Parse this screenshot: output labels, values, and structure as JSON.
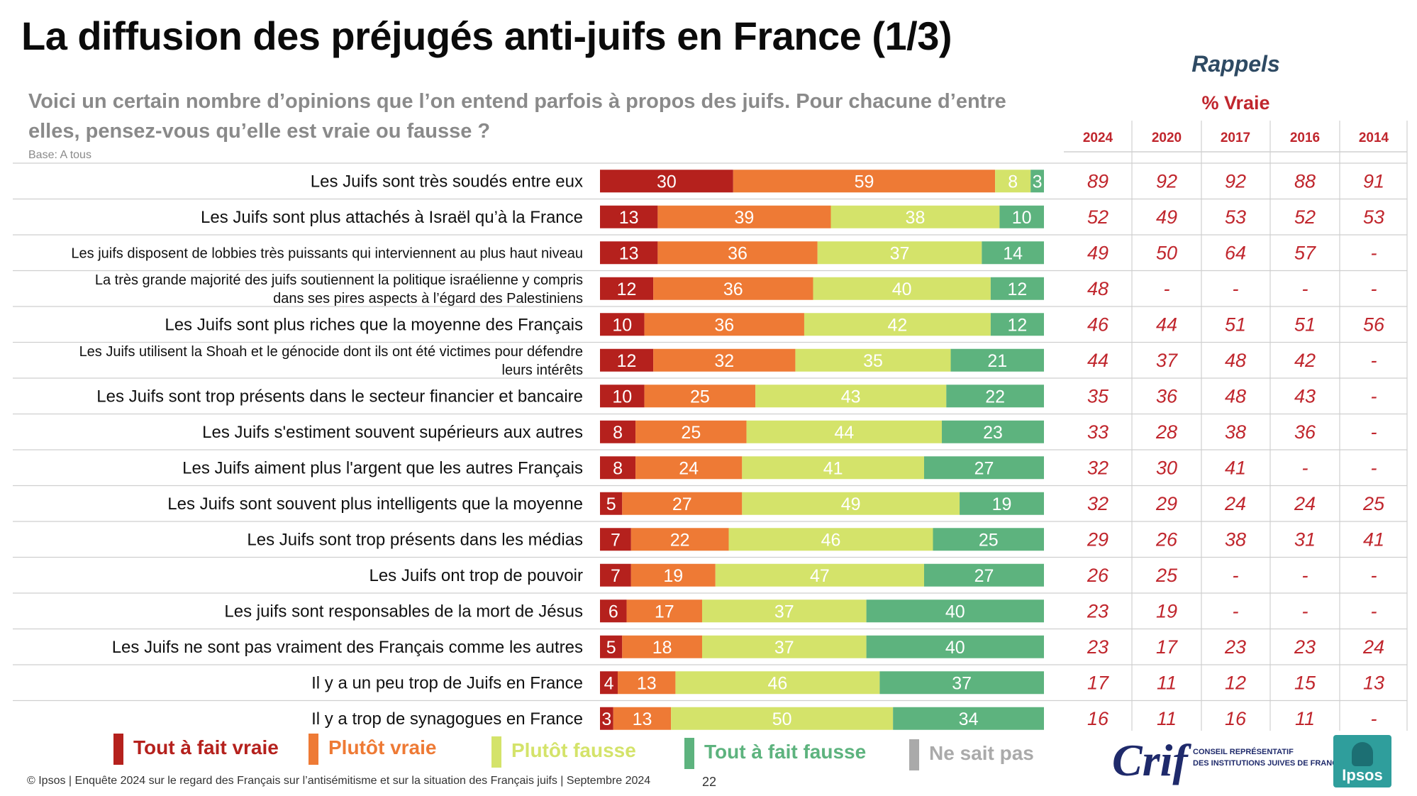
{
  "page": {
    "title": "La diffusion des préjugés anti-juifs en France (1/3)",
    "question": "Voici un certain nombre d’opinions que l’on entend parfois à propos des juifs. Pour chacune d’entre elles, pensez-vous qu’elle est vraie ou fausse ?",
    "base": "Base: A tous",
    "rappels_label": "Rappels",
    "pct_vraie_label": "% Vraie",
    "footer": "© Ipsos | Enquête 2024 sur le regard des Français sur l’antisémitisme et sur la situation des Français juifs | Septembre 2024",
    "page_number": "22"
  },
  "logos": {
    "crif": "Crif",
    "crif_subtitle_line1": "CONSEIL REPRÉSENTATIF",
    "crif_subtitle_line2": "DES INSTITUTIONS JUIVES DE FRANCE",
    "ipsos": "Ipsos"
  },
  "legend": [
    {
      "label": "Tout à fait vraie",
      "color": "#b5211d"
    },
    {
      "label": "Plutôt vraie",
      "color": "#ee7a35"
    },
    {
      "label": "Plutôt fausse",
      "color": "#d4e36a"
    },
    {
      "label": "Tout à fait fausse",
      "color": "#5db37e"
    },
    {
      "label": "Ne sait pas",
      "color": "#aaaaaa"
    }
  ],
  "chart_data": {
    "type": "bar",
    "stacked": true,
    "orientation": "horizontal",
    "scale_max": 100,
    "categories": [
      "Les Juifs sont très soudés entre eux",
      "Les Juifs sont plus attachés à Israël qu’à la France",
      "Les juifs disposent de lobbies très puissants qui interviennent au plus haut niveau",
      "La très grande majorité des juifs soutiennent la politique israélienne y compris dans ses pires aspects à l’égard des Palestiniens",
      "Les Juifs sont plus riches que la moyenne des Français",
      "Les Juifs utilisent la Shoah et le génocide dont ils ont été victimes pour défendre leurs intérêts",
      "Les Juifs sont trop présents dans le secteur financier et bancaire",
      "Les Juifs s'estiment souvent supérieurs aux autres",
      "Les Juifs aiment plus l'argent que les autres Français",
      "Les Juifs sont souvent plus intelligents que la moyenne",
      "Les Juifs sont trop présents dans les médias",
      "Les Juifs ont trop de pouvoir",
      "Les juifs sont responsables de la mort de Jésus",
      "Les Juifs ne sont pas vraiment des Français comme les autres",
      "Il y a un peu trop de Juifs en France",
      "Il y a trop de synagogues en France"
    ],
    "category_lines": [
      [
        "Les Juifs sont très soudés entre eux"
      ],
      [
        "Les Juifs sont plus attachés à Israël qu’à la France"
      ],
      [
        "Les juifs disposent de lobbies très puissants qui interviennent au plus haut niveau"
      ],
      [
        "La très grande majorité des juifs soutiennent la politique israélienne y compris",
        "dans ses pires aspects à l’égard des Palestiniens"
      ],
      [
        "Les Juifs sont plus riches que la moyenne des Français"
      ],
      [
        "Les Juifs utilisent la Shoah et le génocide dont ils ont été victimes pour défendre",
        "leurs intérêts"
      ],
      [
        "Les Juifs sont trop présents dans le secteur financier et bancaire"
      ],
      [
        "Les Juifs s'estiment souvent supérieurs aux autres"
      ],
      [
        "Les Juifs aiment plus l'argent que les autres Français"
      ],
      [
        "Les Juifs sont souvent plus intelligents que la moyenne"
      ],
      [
        "Les Juifs sont trop présents dans les médias"
      ],
      [
        "Les Juifs ont trop de pouvoir"
      ],
      [
        "Les juifs sont responsables de la mort de Jésus"
      ],
      [
        "Les Juifs ne sont pas vraiment des Français comme les autres"
      ],
      [
        "Il y a un peu trop de Juifs en France"
      ],
      [
        "Il y a trop de synagogues en France"
      ]
    ],
    "series": [
      {
        "name": "Tout à fait vraie",
        "color": "#b5211d",
        "values": [
          30,
          13,
          13,
          12,
          10,
          12,
          10,
          8,
          8,
          5,
          7,
          7,
          6,
          5,
          4,
          3
        ]
      },
      {
        "name": "Plutôt vraie",
        "color": "#ee7a35",
        "values": [
          59,
          39,
          36,
          36,
          36,
          32,
          25,
          25,
          24,
          27,
          22,
          19,
          17,
          18,
          13,
          13
        ]
      },
      {
        "name": "Plutôt fausse",
        "color": "#d4e36a",
        "values": [
          8,
          38,
          37,
          40,
          42,
          35,
          43,
          44,
          41,
          49,
          46,
          47,
          37,
          37,
          46,
          50
        ]
      },
      {
        "name": "Tout à fait fausse",
        "color": "#5db37e",
        "values": [
          3,
          10,
          14,
          12,
          12,
          21,
          22,
          23,
          27,
          19,
          25,
          27,
          40,
          40,
          37,
          34
        ]
      }
    ],
    "rappels": {
      "years": [
        "2024",
        "2020",
        "2017",
        "2016",
        "2014"
      ],
      "rows": [
        [
          "89",
          "92",
          "92",
          "88",
          "91"
        ],
        [
          "52",
          "49",
          "53",
          "52",
          "53"
        ],
        [
          "49",
          "50",
          "64",
          "57",
          "-"
        ],
        [
          "48",
          "-",
          "-",
          "-",
          "-"
        ],
        [
          "46",
          "44",
          "51",
          "51",
          "56"
        ],
        [
          "44",
          "37",
          "48",
          "42",
          "-"
        ],
        [
          "35",
          "36",
          "48",
          "43",
          "-"
        ],
        [
          "33",
          "28",
          "38",
          "36",
          "-"
        ],
        [
          "32",
          "30",
          "41",
          "-",
          "-"
        ],
        [
          "32",
          "29",
          "24",
          "24",
          "25"
        ],
        [
          "29",
          "26",
          "38",
          "31",
          "41"
        ],
        [
          "26",
          "25",
          "-",
          "-",
          "-"
        ],
        [
          "23",
          "19",
          "-",
          "-",
          "-"
        ],
        [
          "23",
          "17",
          "23",
          "23",
          "24"
        ],
        [
          "17",
          "11",
          "12",
          "15",
          "13"
        ],
        [
          "16",
          "11",
          "16",
          "11",
          "-"
        ]
      ]
    }
  }
}
